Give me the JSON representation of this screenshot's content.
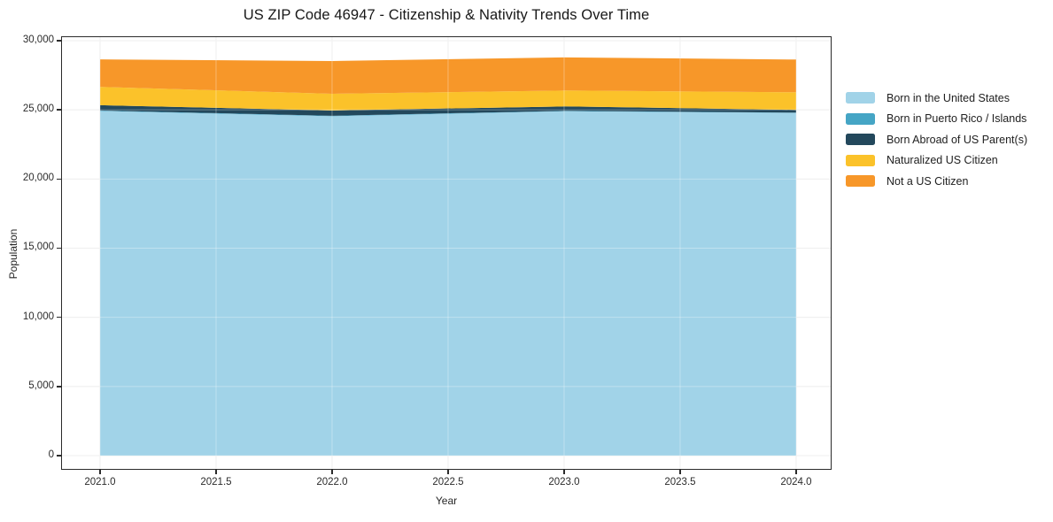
{
  "title": "US ZIP Code 46947 - Citizenship & Nativity Trends Over Time",
  "chart_data": {
    "type": "area",
    "stacked": true,
    "title": "US ZIP Code 46947 - Citizenship & Nativity Trends Over Time",
    "xlabel": "Year",
    "ylabel": "Population",
    "x": [
      2021,
      2022,
      2023,
      2024
    ],
    "series": [
      {
        "name": "Born in the United States",
        "color": "#A1D3E8",
        "values": [
          24920,
          24540,
          24900,
          24780
        ]
      },
      {
        "name": "Born in Puerto Rico / Islands",
        "color": "#45A5C5",
        "values": [
          30,
          30,
          30,
          20
        ]
      },
      {
        "name": "Born Abroad of US Parent(s)",
        "color": "#23485C",
        "values": [
          390,
          380,
          320,
          200
        ]
      },
      {
        "name": "Naturalized US Citizen",
        "color": "#FBC22A",
        "values": [
          1320,
          1210,
          1150,
          1270
        ]
      },
      {
        "name": "Not a US Citizen",
        "color": "#F79729",
        "values": [
          1990,
          2370,
          2390,
          2370
        ]
      }
    ],
    "xlim": [
      2020.836,
      2024.149
    ],
    "ylim": [
      -960,
      30256
    ],
    "xticks": [
      2021.0,
      2021.5,
      2022.0,
      2022.5,
      2023.0,
      2023.5,
      2024.0
    ],
    "xtick_labels": [
      "2021.0",
      "2021.5",
      "2022.0",
      "2022.5",
      "2023.0",
      "2023.5",
      "2024.0"
    ],
    "yticks": [
      0,
      5000,
      10000,
      15000,
      20000,
      25000,
      30000
    ],
    "ytick_labels": [
      "0",
      "5,000",
      "10,000",
      "15,000",
      "20,000",
      "25,000",
      "30,000"
    ],
    "grid": true,
    "grid_color": "#e7e7e7",
    "legend_position": "right-outside",
    "legend_frame": false
  }
}
